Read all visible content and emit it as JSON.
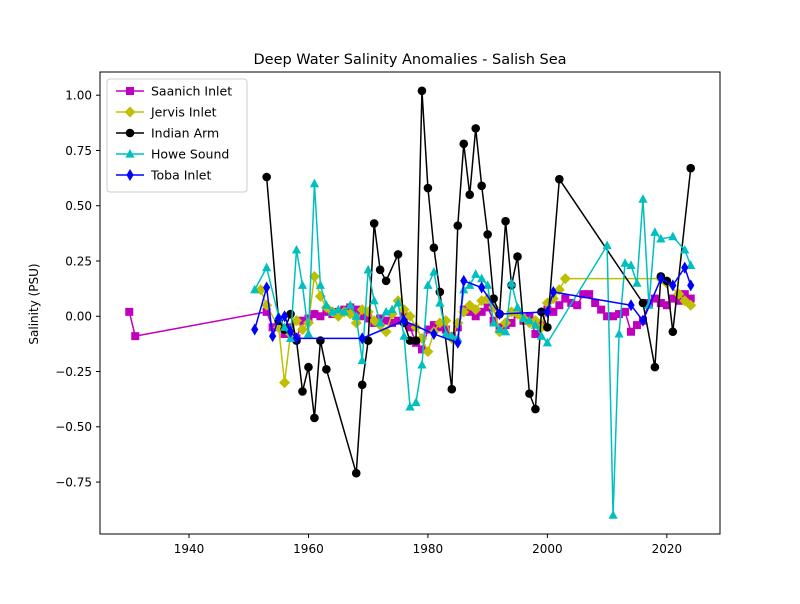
{
  "chart_data": {
    "type": "line",
    "title": "Deep Water Salinity Anomalies - Salish Sea",
    "xlabel": "",
    "ylabel": "Salinity (PSU)",
    "xlim": [
      1925.1,
      2028.9
    ],
    "ylim": [
      -0.985,
      1.105
    ],
    "xticks": [
      1940,
      1960,
      1980,
      2000,
      2020
    ],
    "yticks": [
      -0.75,
      -0.5,
      -0.25,
      0.0,
      0.25,
      0.5,
      0.75,
      1.0
    ],
    "ytick_labels": [
      "−0.75",
      "−0.50",
      "−0.25",
      "0.00",
      "0.25",
      "0.50",
      "0.75",
      "1.00"
    ],
    "grid": false,
    "legend_position": "upper left",
    "series": [
      {
        "name": "Saanich Inlet",
        "color": "#bf00bf",
        "marker": "square",
        "x": [
          1930,
          1931,
          1953,
          1954,
          1955,
          1956,
          1957,
          1958,
          1959,
          1960,
          1961,
          1962,
          1963,
          1964,
          1965,
          1966,
          1967,
          1968,
          1969,
          1970,
          1971,
          1972,
          1973,
          1974,
          1975,
          1976,
          1977,
          1978,
          1979,
          1980,
          1981,
          1982,
          1983,
          1984,
          1985,
          1986,
          1987,
          1988,
          1989,
          1990,
          1991,
          1992,
          1993,
          1994,
          1995,
          1996,
          1997,
          1998,
          1999,
          2000,
          2001,
          2002,
          2003,
          2004,
          2005,
          2006,
          2007,
          2008,
          2009,
          2010,
          2011,
          2012,
          2013,
          2014,
          2015,
          2016,
          2017,
          2018,
          2019,
          2020,
          2021,
          2022,
          2023,
          2024
        ],
        "y": [
          0.02,
          -0.09,
          0.02,
          -0.05,
          -0.03,
          -0.08,
          -0.05,
          -0.1,
          -0.02,
          -0.01,
          0.01,
          0.0,
          0.02,
          0.01,
          0.02,
          0.03,
          0.04,
          0.03,
          0.0,
          -0.01,
          -0.03,
          -0.01,
          -0.02,
          -0.03,
          -0.02,
          0.0,
          -0.05,
          -0.12,
          -0.15,
          -0.06,
          -0.04,
          -0.05,
          -0.06,
          -0.09,
          -0.05,
          0.03,
          0.02,
          0.0,
          0.02,
          0.04,
          -0.02,
          -0.05,
          -0.04,
          -0.03,
          0.01,
          -0.02,
          0.0,
          -0.08,
          -0.04,
          0.03,
          0.02,
          0.05,
          0.08,
          0.06,
          0.05,
          0.1,
          0.1,
          0.06,
          0.03,
          0.0,
          0.0,
          0.01,
          0.02,
          -0.07,
          -0.04,
          -0.02,
          0.06,
          0.08,
          0.06,
          0.05,
          0.08,
          0.07,
          0.1,
          0.08
        ]
      },
      {
        "name": "Jervis Inlet",
        "color": "#bfbf00",
        "marker": "diamond",
        "x": [
          1952,
          1953,
          1955,
          1956,
          1957,
          1958,
          1959,
          1960,
          1961,
          1962,
          1963,
          1964,
          1965,
          1966,
          1967,
          1968,
          1969,
          1970,
          1971,
          1972,
          1973,
          1974,
          1975,
          1976,
          1977,
          1978,
          1979,
          1980,
          1981,
          1982,
          1983,
          1984,
          1985,
          1986,
          1987,
          1988,
          1989,
          1990,
          1991,
          1992,
          1993,
          1994,
          1995,
          1996,
          1997,
          1998,
          1999,
          2000,
          2001,
          2002,
          2003,
          2019,
          2020,
          2022,
          2023,
          2024
        ],
        "y": [
          0.12,
          0.05,
          -0.05,
          -0.3,
          -0.08,
          -0.02,
          -0.06,
          -0.03,
          0.18,
          0.09,
          0.04,
          0.02,
          0.0,
          0.02,
          0.01,
          -0.03,
          0.03,
          0.02,
          -0.02,
          -0.04,
          -0.07,
          0.01,
          0.07,
          0.03,
          0.0,
          -0.05,
          -0.1,
          -0.16,
          -0.07,
          -0.03,
          -0.02,
          -0.1,
          -0.03,
          0.02,
          0.05,
          0.03,
          0.07,
          0.08,
          0.04,
          -0.07,
          -0.03,
          0.02,
          0.01,
          -0.01,
          -0.03,
          -0.02,
          -0.05,
          0.06,
          0.08,
          0.12,
          0.17,
          0.17,
          0.15,
          0.1,
          0.07,
          0.05
        ]
      },
      {
        "name": "Indian Arm",
        "color": "#000000",
        "marker": "circle",
        "x": [
          1953,
          1955,
          1956,
          1957,
          1958,
          1959,
          1960,
          1961,
          1962,
          1963,
          1968,
          1969,
          1970,
          1971,
          1972,
          1973,
          1975,
          1976,
          1977,
          1978,
          1979,
          1980,
          1981,
          1982,
          1984,
          1985,
          1986,
          1987,
          1988,
          1989,
          1990,
          1991,
          1992,
          1993,
          1994,
          1995,
          1997,
          1998,
          1999,
          2000,
          2002,
          2016,
          2018,
          2019,
          2020,
          2021,
          2024
        ],
        "y": [
          0.63,
          -0.02,
          -0.06,
          0.01,
          -0.11,
          -0.34,
          -0.23,
          -0.46,
          -0.11,
          -0.24,
          -0.71,
          -0.31,
          -0.11,
          0.42,
          0.21,
          0.16,
          0.28,
          -0.03,
          -0.11,
          -0.11,
          1.02,
          0.58,
          0.31,
          0.11,
          -0.33,
          0.41,
          0.78,
          0.55,
          0.85,
          0.59,
          0.37,
          0.08,
          0.01,
          0.43,
          0.14,
          0.27,
          -0.35,
          -0.42,
          0.02,
          -0.05,
          0.62,
          0.06,
          -0.23,
          0.18,
          0.16,
          -0.07,
          0.67
        ]
      },
      {
        "name": "Howe Sound",
        "color": "#00bfbf",
        "marker": "triangle",
        "x": [
          1951,
          1953,
          1955,
          1956,
          1957,
          1958,
          1959,
          1960,
          1961,
          1962,
          1963,
          1964,
          1965,
          1966,
          1967,
          1968,
          1969,
          1970,
          1971,
          1972,
          1973,
          1974,
          1975,
          1976,
          1977,
          1978,
          1979,
          1980,
          1981,
          1982,
          1983,
          1984,
          1985,
          1986,
          1987,
          1988,
          1989,
          1990,
          1991,
          1992,
          1993,
          1994,
          1995,
          1996,
          1997,
          1998,
          1999,
          2000,
          2010,
          2011,
          2012,
          2013,
          2014,
          2015,
          2016,
          2017,
          2018,
          2019,
          2021,
          2023,
          2024
        ],
        "y": [
          0.12,
          0.22,
          0.0,
          -0.05,
          -0.1,
          0.3,
          0.14,
          -0.08,
          0.6,
          0.14,
          0.05,
          0.02,
          0.03,
          0.02,
          0.05,
          0.0,
          -0.2,
          0.21,
          0.07,
          -0.03,
          0.02,
          0.03,
          0.06,
          -0.09,
          -0.41,
          -0.39,
          -0.22,
          0.14,
          0.2,
          0.06,
          -0.08,
          -0.09,
          -0.1,
          0.12,
          0.14,
          0.19,
          0.17,
          0.14,
          -0.03,
          -0.06,
          -0.07,
          0.15,
          0.04,
          -0.01,
          -0.02,
          -0.04,
          -0.09,
          -0.12,
          0.32,
          -0.9,
          -0.08,
          0.24,
          0.23,
          0.15,
          0.53,
          0.05,
          0.38,
          0.35,
          0.36,
          0.3,
          0.23
        ]
      },
      {
        "name": "Toba Inlet",
        "color": "#0000ff",
        "marker": "thin_diamond",
        "x": [
          1951,
          1953,
          1954,
          1955,
          1956,
          1957,
          1958,
          1969,
          1976,
          1981,
          1985,
          1986,
          1989,
          1992,
          2000,
          2001,
          2014,
          2016,
          2019,
          2021,
          2023,
          2024
        ],
        "y": [
          -0.06,
          0.13,
          -0.09,
          -0.01,
          0.0,
          -0.07,
          -0.1,
          -0.1,
          -0.02,
          -0.08,
          -0.12,
          0.16,
          0.13,
          0.01,
          0.02,
          0.11,
          0.05,
          -0.02,
          0.17,
          0.14,
          0.22,
          0.14
        ]
      }
    ]
  }
}
